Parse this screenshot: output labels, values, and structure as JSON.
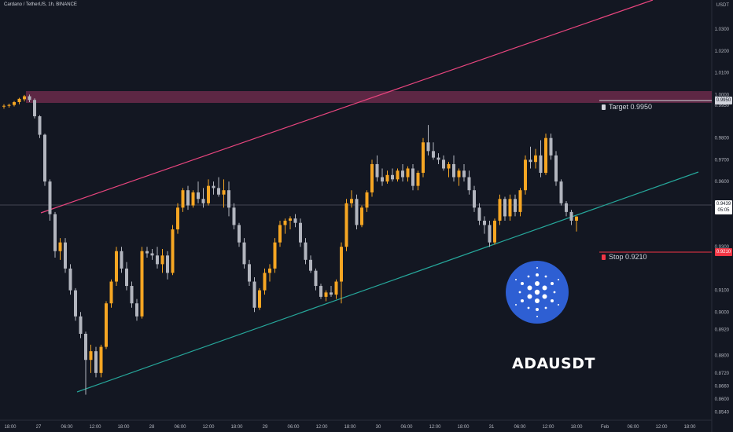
{
  "header": {
    "symbol_title": "Cardano / TetherUS, 1h, BINANCE"
  },
  "price_axis": {
    "unit": "USDT",
    "ticks": [
      {
        "label": "1.0400",
        "value": 1.04
      },
      {
        "label": "1.0300",
        "value": 1.03
      },
      {
        "label": "1.0200",
        "value": 1.02
      },
      {
        "label": "1.0100",
        "value": 1.01
      },
      {
        "label": "1.0000",
        "value": 1.0
      },
      {
        "label": "0.9950",
        "value": 0.995
      },
      {
        "label": "0.9800",
        "value": 0.98
      },
      {
        "label": "0.9700",
        "value": 0.97
      },
      {
        "label": "0.9600",
        "value": 0.96
      },
      {
        "label": "0.9500",
        "value": 0.95
      },
      {
        "label": "0.9300",
        "value": 0.93
      },
      {
        "label": "0.9100",
        "value": 0.91
      },
      {
        "label": "0.9000",
        "value": 0.9
      },
      {
        "label": "0.8920",
        "value": 0.892
      },
      {
        "label": "0.8800",
        "value": 0.88
      },
      {
        "label": "0.8720",
        "value": 0.872
      },
      {
        "label": "0.8660",
        "value": 0.866
      },
      {
        "label": "0.8600",
        "value": 0.86
      },
      {
        "label": "0.8540",
        "value": 0.854
      }
    ]
  },
  "time_axis": {
    "ticks": [
      "18:00",
      "27",
      "06:00",
      "12:00",
      "18:00",
      "28",
      "06:00",
      "12:00",
      "18:00",
      "29",
      "06:00",
      "12:00",
      "18:00",
      "30",
      "06:00",
      "12:00",
      "18:00",
      "31",
      "06:00",
      "12:00",
      "18:00",
      "Feb",
      "06:00",
      "12:00",
      "18:00"
    ]
  },
  "badges": {
    "target_value": "0.9950",
    "stop_value": "0.9210",
    "last_price": "0.9439",
    "countdown": "05:05"
  },
  "annotations": {
    "target_label": "Target 0.9950",
    "stop_label": "Stop 0.9210",
    "pair_caption": "ADAUSDT"
  },
  "colors": {
    "background": "#131722",
    "bull_candle": "#f6a623",
    "bear_candle": "#b2b5be",
    "resistance_zone": "#6b2a4a",
    "upper_trendline": "#e8457e",
    "lower_trendline": "#26a69a",
    "target_line": "#d1d4dc",
    "stop_line": "#f23645",
    "logo": "#2e5fd3"
  },
  "chart_data": {
    "type": "candlestick",
    "title": "Cardano / TetherUS, 1h, BINANCE",
    "xlabel": "",
    "ylabel": "USDT",
    "x_range": [
      "Jan 26 14:00",
      "Feb 1 23:00"
    ],
    "ylim": [
      0.851,
      1.042
    ],
    "candles": [
      {
        "o": 0.9945,
        "h": 0.9955,
        "l": 0.9935,
        "c": 0.9948
      },
      {
        "o": 0.9948,
        "h": 0.9958,
        "l": 0.994,
        "c": 0.9952
      },
      {
        "o": 0.9952,
        "h": 0.997,
        "l": 0.9945,
        "c": 0.9965
      },
      {
        "o": 0.9965,
        "h": 0.9985,
        "l": 0.9955,
        "c": 0.998
      },
      {
        "o": 0.9978,
        "h": 0.9998,
        "l": 0.9968,
        "c": 0.9992
      },
      {
        "o": 0.9992,
        "h": 1.0,
        "l": 0.9965,
        "c": 0.9975
      },
      {
        "o": 0.9975,
        "h": 0.9982,
        "l": 0.989,
        "c": 0.99
      },
      {
        "o": 0.99,
        "h": 0.9905,
        "l": 0.98,
        "c": 0.9815
      },
      {
        "o": 0.9815,
        "h": 0.982,
        "l": 0.958,
        "c": 0.96
      },
      {
        "o": 0.96,
        "h": 0.961,
        "l": 0.942,
        "c": 0.945
      },
      {
        "o": 0.945,
        "h": 0.946,
        "l": 0.925,
        "c": 0.928
      },
      {
        "o": 0.928,
        "h": 0.934,
        "l": 0.924,
        "c": 0.932
      },
      {
        "o": 0.932,
        "h": 0.934,
        "l": 0.918,
        "c": 0.92
      },
      {
        "o": 0.92,
        "h": 0.922,
        "l": 0.908,
        "c": 0.91
      },
      {
        "o": 0.91,
        "h": 0.911,
        "l": 0.896,
        "c": 0.898
      },
      {
        "o": 0.898,
        "h": 0.9,
        "l": 0.888,
        "c": 0.89
      },
      {
        "o": 0.89,
        "h": 0.891,
        "l": 0.862,
        "c": 0.878
      },
      {
        "o": 0.878,
        "h": 0.885,
        "l": 0.872,
        "c": 0.882
      },
      {
        "o": 0.882,
        "h": 0.884,
        "l": 0.87,
        "c": 0.872
      },
      {
        "o": 0.872,
        "h": 0.885,
        "l": 0.87,
        "c": 0.884
      },
      {
        "o": 0.884,
        "h": 0.905,
        "l": 0.883,
        "c": 0.904
      },
      {
        "o": 0.904,
        "h": 0.915,
        "l": 0.902,
        "c": 0.914
      },
      {
        "o": 0.914,
        "h": 0.93,
        "l": 0.912,
        "c": 0.928
      },
      {
        "o": 0.928,
        "h": 0.93,
        "l": 0.918,
        "c": 0.92
      },
      {
        "o": 0.92,
        "h": 0.923,
        "l": 0.91,
        "c": 0.912
      },
      {
        "o": 0.912,
        "h": 0.914,
        "l": 0.902,
        "c": 0.904
      },
      {
        "o": 0.904,
        "h": 0.906,
        "l": 0.896,
        "c": 0.898
      },
      {
        "o": 0.898,
        "h": 0.93,
        "l": 0.897,
        "c": 0.928
      },
      {
        "o": 0.928,
        "h": 0.93,
        "l": 0.925,
        "c": 0.927
      },
      {
        "o": 0.927,
        "h": 0.929,
        "l": 0.924,
        "c": 0.926
      },
      {
        "o": 0.926,
        "h": 0.93,
        "l": 0.92,
        "c": 0.922
      },
      {
        "o": 0.922,
        "h": 0.929,
        "l": 0.918,
        "c": 0.926
      },
      {
        "o": 0.926,
        "h": 0.928,
        "l": 0.915,
        "c": 0.918
      },
      {
        "o": 0.918,
        "h": 0.94,
        "l": 0.917,
        "c": 0.938
      },
      {
        "o": 0.938,
        "h": 0.95,
        "l": 0.936,
        "c": 0.948
      },
      {
        "o": 0.948,
        "h": 0.957,
        "l": 0.946,
        "c": 0.956
      },
      {
        "o": 0.956,
        "h": 0.958,
        "l": 0.947,
        "c": 0.949
      },
      {
        "o": 0.949,
        "h": 0.956,
        "l": 0.948,
        "c": 0.955
      },
      {
        "o": 0.955,
        "h": 0.96,
        "l": 0.95,
        "c": 0.952
      },
      {
        "o": 0.952,
        "h": 0.957,
        "l": 0.948,
        "c": 0.95
      },
      {
        "o": 0.95,
        "h": 0.961,
        "l": 0.949,
        "c": 0.958
      },
      {
        "o": 0.958,
        "h": 0.96,
        "l": 0.954,
        "c": 0.957
      },
      {
        "o": 0.957,
        "h": 0.962,
        "l": 0.953,
        "c": 0.954
      },
      {
        "o": 0.954,
        "h": 0.961,
        "l": 0.948,
        "c": 0.956
      },
      {
        "o": 0.956,
        "h": 0.96,
        "l": 0.944,
        "c": 0.948
      },
      {
        "o": 0.948,
        "h": 0.95,
        "l": 0.938,
        "c": 0.94
      },
      {
        "o": 0.94,
        "h": 0.941,
        "l": 0.93,
        "c": 0.932
      },
      {
        "o": 0.932,
        "h": 0.934,
        "l": 0.92,
        "c": 0.922
      },
      {
        "o": 0.922,
        "h": 0.924,
        "l": 0.912,
        "c": 0.914
      },
      {
        "o": 0.914,
        "h": 0.916,
        "l": 0.9,
        "c": 0.902
      },
      {
        "o": 0.902,
        "h": 0.911,
        "l": 0.901,
        "c": 0.91
      },
      {
        "o": 0.91,
        "h": 0.92,
        "l": 0.908,
        "c": 0.918
      },
      {
        "o": 0.918,
        "h": 0.922,
        "l": 0.914,
        "c": 0.92
      },
      {
        "o": 0.92,
        "h": 0.934,
        "l": 0.918,
        "c": 0.932
      },
      {
        "o": 0.932,
        "h": 0.942,
        "l": 0.93,
        "c": 0.94
      },
      {
        "o": 0.94,
        "h": 0.943,
        "l": 0.936,
        "c": 0.942
      },
      {
        "o": 0.942,
        "h": 0.944,
        "l": 0.938,
        "c": 0.943
      },
      {
        "o": 0.943,
        "h": 0.945,
        "l": 0.939,
        "c": 0.941
      },
      {
        "o": 0.941,
        "h": 0.943,
        "l": 0.93,
        "c": 0.932
      },
      {
        "o": 0.932,
        "h": 0.934,
        "l": 0.922,
        "c": 0.924
      },
      {
        "o": 0.924,
        "h": 0.926,
        "l": 0.918,
        "c": 0.919
      },
      {
        "o": 0.919,
        "h": 0.92,
        "l": 0.91,
        "c": 0.912
      },
      {
        "o": 0.912,
        "h": 0.913,
        "l": 0.906,
        "c": 0.907
      },
      {
        "o": 0.907,
        "h": 0.91,
        "l": 0.905,
        "c": 0.909
      },
      {
        "o": 0.909,
        "h": 0.912,
        "l": 0.907,
        "c": 0.908
      },
      {
        "o": 0.908,
        "h": 0.915,
        "l": 0.906,
        "c": 0.914
      },
      {
        "o": 0.914,
        "h": 0.932,
        "l": 0.904,
        "c": 0.93
      },
      {
        "o": 0.93,
        "h": 0.952,
        "l": 0.928,
        "c": 0.95
      },
      {
        "o": 0.95,
        "h": 0.956,
        "l": 0.948,
        "c": 0.952
      },
      {
        "o": 0.952,
        "h": 0.954,
        "l": 0.938,
        "c": 0.94
      },
      {
        "o": 0.94,
        "h": 0.949,
        "l": 0.939,
        "c": 0.948
      },
      {
        "o": 0.948,
        "h": 0.956,
        "l": 0.946,
        "c": 0.955
      },
      {
        "o": 0.955,
        "h": 0.97,
        "l": 0.953,
        "c": 0.968
      },
      {
        "o": 0.968,
        "h": 0.972,
        "l": 0.96,
        "c": 0.962
      },
      {
        "o": 0.962,
        "h": 0.966,
        "l": 0.958,
        "c": 0.96
      },
      {
        "o": 0.96,
        "h": 0.965,
        "l": 0.959,
        "c": 0.963
      },
      {
        "o": 0.963,
        "h": 0.966,
        "l": 0.96,
        "c": 0.961
      },
      {
        "o": 0.961,
        "h": 0.966,
        "l": 0.96,
        "c": 0.965
      },
      {
        "o": 0.965,
        "h": 0.968,
        "l": 0.96,
        "c": 0.962
      },
      {
        "o": 0.962,
        "h": 0.967,
        "l": 0.96,
        "c": 0.966
      },
      {
        "o": 0.966,
        "h": 0.968,
        "l": 0.956,
        "c": 0.958
      },
      {
        "o": 0.958,
        "h": 0.965,
        "l": 0.956,
        "c": 0.964
      },
      {
        "o": 0.964,
        "h": 0.98,
        "l": 0.962,
        "c": 0.978
      },
      {
        "o": 0.978,
        "h": 0.986,
        "l": 0.972,
        "c": 0.974
      },
      {
        "o": 0.974,
        "h": 0.978,
        "l": 0.97,
        "c": 0.971
      },
      {
        "o": 0.971,
        "h": 0.973,
        "l": 0.968,
        "c": 0.97
      },
      {
        "o": 0.97,
        "h": 0.972,
        "l": 0.965,
        "c": 0.966
      },
      {
        "o": 0.966,
        "h": 0.969,
        "l": 0.962,
        "c": 0.968
      },
      {
        "o": 0.968,
        "h": 0.972,
        "l": 0.96,
        "c": 0.962
      },
      {
        "o": 0.962,
        "h": 0.966,
        "l": 0.958,
        "c": 0.965
      },
      {
        "o": 0.965,
        "h": 0.968,
        "l": 0.96,
        "c": 0.962
      },
      {
        "o": 0.962,
        "h": 0.965,
        "l": 0.954,
        "c": 0.956
      },
      {
        "o": 0.956,
        "h": 0.958,
        "l": 0.946,
        "c": 0.948
      },
      {
        "o": 0.948,
        "h": 0.95,
        "l": 0.94,
        "c": 0.942
      },
      {
        "o": 0.942,
        "h": 0.944,
        "l": 0.936,
        "c": 0.94
      },
      {
        "o": 0.94,
        "h": 0.942,
        "l": 0.93,
        "c": 0.932
      },
      {
        "o": 0.932,
        "h": 0.943,
        "l": 0.931,
        "c": 0.942
      },
      {
        "o": 0.942,
        "h": 0.954,
        "l": 0.94,
        "c": 0.952
      },
      {
        "o": 0.952,
        "h": 0.953,
        "l": 0.942,
        "c": 0.944
      },
      {
        "o": 0.944,
        "h": 0.954,
        "l": 0.942,
        "c": 0.952
      },
      {
        "o": 0.952,
        "h": 0.954,
        "l": 0.944,
        "c": 0.946
      },
      {
        "o": 0.946,
        "h": 0.957,
        "l": 0.944,
        "c": 0.956
      },
      {
        "o": 0.956,
        "h": 0.972,
        "l": 0.954,
        "c": 0.97
      },
      {
        "o": 0.97,
        "h": 0.976,
        "l": 0.966,
        "c": 0.969
      },
      {
        "o": 0.969,
        "h": 0.975,
        "l": 0.966,
        "c": 0.972
      },
      {
        "o": 0.972,
        "h": 0.979,
        "l": 0.962,
        "c": 0.964
      },
      {
        "o": 0.964,
        "h": 0.982,
        "l": 0.963,
        "c": 0.98
      },
      {
        "o": 0.98,
        "h": 0.982,
        "l": 0.97,
        "c": 0.972
      },
      {
        "o": 0.972,
        "h": 0.974,
        "l": 0.958,
        "c": 0.96
      },
      {
        "o": 0.96,
        "h": 0.961,
        "l": 0.949,
        "c": 0.95
      },
      {
        "o": 0.95,
        "h": 0.951,
        "l": 0.944,
        "c": 0.946
      },
      {
        "o": 0.946,
        "h": 0.947,
        "l": 0.94,
        "c": 0.942
      },
      {
        "o": 0.942,
        "h": 0.944,
        "l": 0.937,
        "c": 0.9439
      }
    ]
  }
}
